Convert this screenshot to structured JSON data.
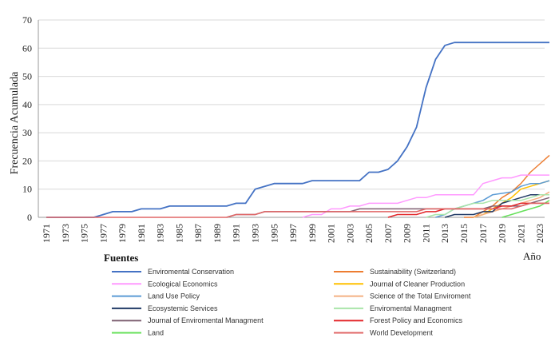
{
  "chart_data": {
    "type": "line",
    "ylabel": "Frecuencia Acumulada",
    "xlabel": "Año",
    "legend_title": "Fuentes",
    "ylim": [
      0,
      70
    ],
    "yticks": [
      0,
      10,
      20,
      30,
      40,
      50,
      60,
      70
    ],
    "xlim": [
      1971,
      2024
    ],
    "xticks": [
      1971,
      1973,
      1975,
      1977,
      1979,
      1981,
      1983,
      1985,
      1987,
      1989,
      1991,
      1993,
      1995,
      1997,
      1999,
      2001,
      2003,
      2005,
      2007,
      2009,
      2011,
      2013,
      2015,
      2017,
      2019,
      2021,
      2023
    ],
    "grid": "horizontal",
    "legend_position": "bottom",
    "series": [
      {
        "name": "Enviromental Conservation",
        "color": "#4472c4",
        "points": [
          [
            1971,
            0
          ],
          [
            1976,
            0
          ],
          [
            1977,
            1
          ],
          [
            1978,
            2
          ],
          [
            1980,
            2
          ],
          [
            1981,
            3
          ],
          [
            1983,
            3
          ],
          [
            1984,
            4
          ],
          [
            1990,
            4
          ],
          [
            1991,
            5
          ],
          [
            1992,
            5
          ],
          [
            1993,
            10
          ],
          [
            1995,
            12
          ],
          [
            1998,
            12
          ],
          [
            1999,
            13
          ],
          [
            2004,
            13
          ],
          [
            2005,
            16
          ],
          [
            2006,
            16
          ],
          [
            2007,
            17
          ],
          [
            2008,
            20
          ],
          [
            2009,
            25
          ],
          [
            2010,
            32
          ],
          [
            2011,
            46
          ],
          [
            2012,
            56
          ],
          [
            2013,
            61
          ],
          [
            2014,
            62
          ],
          [
            2024,
            62
          ]
        ]
      },
      {
        "name": "Sustainability (Switzerland)",
        "color": "#ed7d31",
        "points": [
          [
            2015,
            0
          ],
          [
            2016,
            0
          ],
          [
            2017,
            2
          ],
          [
            2018,
            4
          ],
          [
            2019,
            7
          ],
          [
            2020,
            9
          ],
          [
            2021,
            12
          ],
          [
            2022,
            16
          ],
          [
            2023,
            19
          ],
          [
            2024,
            22
          ]
        ]
      },
      {
        "name": "Ecological Economics",
        "color": "#ff99ff",
        "points": [
          [
            1998,
            0
          ],
          [
            1999,
            1
          ],
          [
            2000,
            1
          ],
          [
            2001,
            3
          ],
          [
            2002,
            3
          ],
          [
            2003,
            4
          ],
          [
            2004,
            4
          ],
          [
            2005,
            5
          ],
          [
            2008,
            5
          ],
          [
            2009,
            6
          ],
          [
            2010,
            7
          ],
          [
            2011,
            7
          ],
          [
            2012,
            8
          ],
          [
            2016,
            8
          ],
          [
            2017,
            12
          ],
          [
            2018,
            13
          ],
          [
            2019,
            14
          ],
          [
            2020,
            14
          ],
          [
            2021,
            15
          ],
          [
            2024,
            15
          ]
        ]
      },
      {
        "name": "Journal of Cleaner Production",
        "color": "#ffc000",
        "points": [
          [
            2016,
            0
          ],
          [
            2017,
            1
          ],
          [
            2018,
            3
          ],
          [
            2019,
            5
          ],
          [
            2020,
            7
          ],
          [
            2021,
            10
          ],
          [
            2022,
            11
          ],
          [
            2023,
            12
          ],
          [
            2024,
            13
          ]
        ]
      },
      {
        "name": "Land Use Policy",
        "color": "#5b9bd5",
        "points": [
          [
            2012,
            0
          ],
          [
            2013,
            1
          ],
          [
            2014,
            3
          ],
          [
            2015,
            4
          ],
          [
            2016,
            5
          ],
          [
            2017,
            6
          ],
          [
            2018,
            8
          ],
          [
            2020,
            9
          ],
          [
            2021,
            11
          ],
          [
            2022,
            12
          ],
          [
            2023,
            12
          ],
          [
            2024,
            13
          ]
        ]
      },
      {
        "name": "Science of the Total Enviroment",
        "color": "#f4b183",
        "points": [
          [
            2016,
            0
          ],
          [
            2017,
            1
          ],
          [
            2018,
            2
          ],
          [
            2019,
            3
          ],
          [
            2020,
            4
          ],
          [
            2021,
            5
          ],
          [
            2022,
            6
          ],
          [
            2023,
            7
          ],
          [
            2024,
            9
          ]
        ]
      },
      {
        "name": "Ecosystemic Services",
        "color": "#1f3864",
        "points": [
          [
            2013,
            0
          ],
          [
            2014,
            1
          ],
          [
            2015,
            1
          ],
          [
            2016,
            1
          ],
          [
            2017,
            2
          ],
          [
            2018,
            2
          ],
          [
            2019,
            5
          ],
          [
            2020,
            6
          ],
          [
            2021,
            7
          ],
          [
            2022,
            8
          ],
          [
            2023,
            8
          ],
          [
            2024,
            8
          ]
        ]
      },
      {
        "name": "Enviromental Managment",
        "color": "#a9e5a9",
        "points": [
          [
            2011,
            0
          ],
          [
            2012,
            1
          ],
          [
            2013,
            1
          ],
          [
            2014,
            3
          ],
          [
            2015,
            4
          ],
          [
            2016,
            5
          ],
          [
            2017,
            5
          ],
          [
            2018,
            6
          ],
          [
            2019,
            6
          ],
          [
            2020,
            6
          ],
          [
            2021,
            6
          ],
          [
            2022,
            7
          ],
          [
            2023,
            8
          ],
          [
            2024,
            8
          ]
        ]
      },
      {
        "name": "Journal of Enviromental Managment",
        "color": "#7f6072",
        "points": [
          [
            1990,
            0
          ],
          [
            1991,
            1
          ],
          [
            1993,
            1
          ],
          [
            1994,
            2
          ],
          [
            2003,
            2
          ],
          [
            2004,
            3
          ],
          [
            2011,
            3
          ],
          [
            2012,
            3
          ],
          [
            2013,
            3
          ],
          [
            2014,
            3
          ],
          [
            2017,
            3
          ],
          [
            2018,
            4
          ],
          [
            2021,
            4
          ],
          [
            2022,
            5
          ],
          [
            2023,
            6
          ],
          [
            2024,
            7
          ]
        ]
      },
      {
        "name": "Forest Policy and Economics",
        "color": "#e3262a",
        "points": [
          [
            2007,
            0
          ],
          [
            2008,
            1
          ],
          [
            2010,
            1
          ],
          [
            2011,
            2
          ],
          [
            2012,
            2
          ],
          [
            2013,
            3
          ],
          [
            2018,
            3
          ],
          [
            2019,
            4
          ],
          [
            2020,
            4
          ],
          [
            2021,
            5
          ],
          [
            2024,
            5
          ]
        ]
      },
      {
        "name": "Land",
        "color": "#66e05a",
        "points": [
          [
            2019,
            0
          ],
          [
            2020,
            1
          ],
          [
            2021,
            2
          ],
          [
            2022,
            3
          ],
          [
            2023,
            4
          ],
          [
            2024,
            6
          ]
        ]
      },
      {
        "name": "World Development",
        "color": "#e06666",
        "points": [
          [
            1971,
            0
          ],
          [
            1990,
            0
          ],
          [
            1991,
            1
          ],
          [
            1992,
            1
          ],
          [
            1993,
            1
          ],
          [
            1994,
            2
          ],
          [
            1995,
            2
          ],
          [
            2000,
            2
          ],
          [
            2001,
            2
          ],
          [
            2002,
            2
          ],
          [
            2009,
            2
          ],
          [
            2010,
            2
          ],
          [
            2011,
            3
          ],
          [
            2012,
            3
          ],
          [
            2013,
            3
          ],
          [
            2020,
            3
          ],
          [
            2021,
            4
          ],
          [
            2022,
            5
          ],
          [
            2024,
            5
          ]
        ]
      }
    ]
  }
}
